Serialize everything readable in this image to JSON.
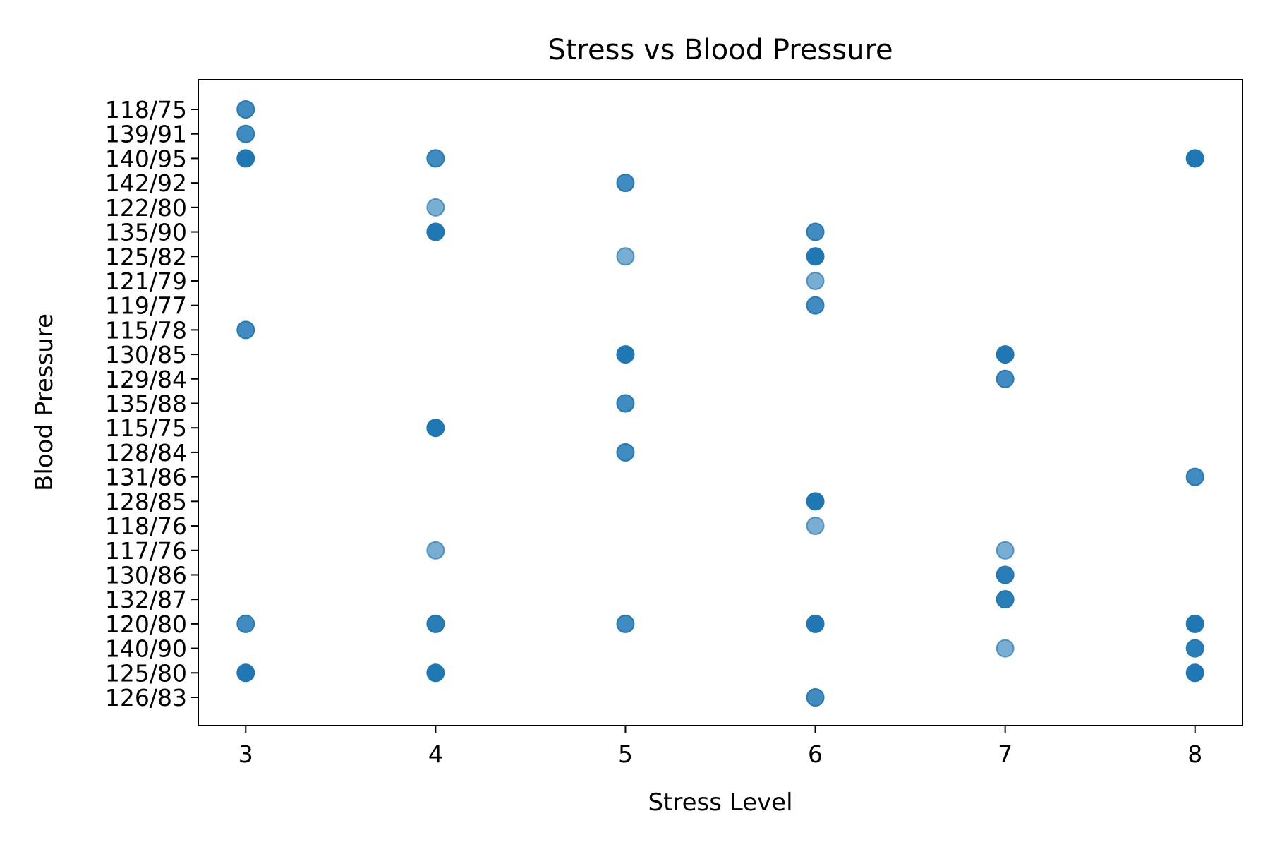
{
  "chart_data": {
    "type": "scatter",
    "title": "Stress vs Blood Pressure",
    "xlabel": "Stress Level",
    "ylabel": "Blood Pressure",
    "x_ticks": [
      3,
      4,
      5,
      6,
      7,
      8
    ],
    "xlim": [
      2.75,
      8.25
    ],
    "y_categories": [
      "118/75",
      "139/91",
      "140/95",
      "142/92",
      "122/80",
      "135/90",
      "125/82",
      "121/79",
      "119/77",
      "115/78",
      "130/85",
      "129/84",
      "135/88",
      "115/75",
      "128/84",
      "131/86",
      "128/85",
      "118/76",
      "117/76",
      "130/86",
      "132/87",
      "120/80",
      "140/90",
      "125/80",
      "126/83"
    ],
    "color": "#1f77b4",
    "grid": false,
    "points": [
      {
        "x": 3,
        "y": "118/75",
        "opacity": 0.85
      },
      {
        "x": 3,
        "y": "139/91",
        "opacity": 0.85
      },
      {
        "x": 3,
        "y": "140/95",
        "opacity": 1.0
      },
      {
        "x": 3,
        "y": "115/78",
        "opacity": 0.85
      },
      {
        "x": 3,
        "y": "120/80",
        "opacity": 0.85
      },
      {
        "x": 3,
        "y": "125/80",
        "opacity": 1.0
      },
      {
        "x": 4,
        "y": "140/95",
        "opacity": 0.85
      },
      {
        "x": 4,
        "y": "122/80",
        "opacity": 0.6
      },
      {
        "x": 4,
        "y": "135/90",
        "opacity": 1.0
      },
      {
        "x": 4,
        "y": "115/75",
        "opacity": 1.0
      },
      {
        "x": 4,
        "y": "117/76",
        "opacity": 0.6
      },
      {
        "x": 4,
        "y": "120/80",
        "opacity": 0.95
      },
      {
        "x": 4,
        "y": "125/80",
        "opacity": 1.0
      },
      {
        "x": 5,
        "y": "142/92",
        "opacity": 0.85
      },
      {
        "x": 5,
        "y": "125/82",
        "opacity": 0.6
      },
      {
        "x": 5,
        "y": "130/85",
        "opacity": 1.0
      },
      {
        "x": 5,
        "y": "135/88",
        "opacity": 0.85
      },
      {
        "x": 5,
        "y": "128/84",
        "opacity": 0.85
      },
      {
        "x": 5,
        "y": "120/80",
        "opacity": 0.85
      },
      {
        "x": 6,
        "y": "135/90",
        "opacity": 0.85
      },
      {
        "x": 6,
        "y": "125/82",
        "opacity": 1.0
      },
      {
        "x": 6,
        "y": "121/79",
        "opacity": 0.6
      },
      {
        "x": 6,
        "y": "119/77",
        "opacity": 0.85
      },
      {
        "x": 6,
        "y": "128/85",
        "opacity": 1.0
      },
      {
        "x": 6,
        "y": "118/76",
        "opacity": 0.6
      },
      {
        "x": 6,
        "y": "120/80",
        "opacity": 1.0
      },
      {
        "x": 6,
        "y": "126/83",
        "opacity": 0.85
      },
      {
        "x": 7,
        "y": "130/85",
        "opacity": 1.0
      },
      {
        "x": 7,
        "y": "129/84",
        "opacity": 0.85
      },
      {
        "x": 7,
        "y": "117/76",
        "opacity": 0.6
      },
      {
        "x": 7,
        "y": "130/86",
        "opacity": 0.95
      },
      {
        "x": 7,
        "y": "132/87",
        "opacity": 0.95
      },
      {
        "x": 7,
        "y": "140/90",
        "opacity": 0.6
      },
      {
        "x": 8,
        "y": "140/95",
        "opacity": 1.0
      },
      {
        "x": 8,
        "y": "131/86",
        "opacity": 0.85
      },
      {
        "x": 8,
        "y": "120/80",
        "opacity": 1.0
      },
      {
        "x": 8,
        "y": "140/90",
        "opacity": 0.95
      },
      {
        "x": 8,
        "y": "125/80",
        "opacity": 1.0
      }
    ]
  }
}
